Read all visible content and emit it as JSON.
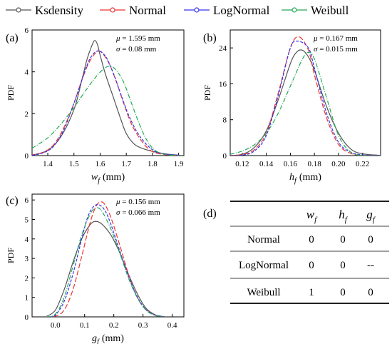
{
  "legend": {
    "items": [
      {
        "label": "Ksdensity",
        "color": "#555555"
      },
      {
        "label": "Normal",
        "color": "#ee3333"
      },
      {
        "label": "LogNormal",
        "color": "#3333ee"
      },
      {
        "label": "Weibull",
        "color": "#22aa55"
      }
    ]
  },
  "chart_data": [
    {
      "type": "line",
      "panel": "(a)",
      "ylabel": "PDF",
      "xlabel_main": "w",
      "xlabel_sub": "f",
      "xlabel_unit": "(mm)",
      "annotations": [
        "μ = 1.595 mm",
        "σ = 0.08 mm"
      ],
      "xlim": [
        1.34,
        1.92
      ],
      "ylim": [
        0,
        6
      ],
      "xticks": [
        1.4,
        1.5,
        1.6,
        1.7,
        1.8,
        1.9
      ],
      "xtick_labels": [
        "1.4",
        "1.5",
        "1.6",
        "1.7",
        "1.8",
        "1.9"
      ],
      "yticks": [
        0,
        2,
        4,
        6
      ],
      "ytick_labels": [
        "0",
        "2",
        "4",
        "6"
      ],
      "series": [
        {
          "name": "Ksdensity",
          "color": "#555555",
          "x": [
            1.34,
            1.4,
            1.45,
            1.5,
            1.53,
            1.55,
            1.57,
            1.58,
            1.59,
            1.6,
            1.62,
            1.65,
            1.68,
            1.7,
            1.73,
            1.76,
            1.8,
            1.85,
            1.9
          ],
          "y": [
            0.02,
            0.25,
            0.9,
            2.2,
            3.6,
            4.6,
            5.3,
            5.5,
            5.3,
            4.8,
            3.9,
            2.8,
            1.7,
            1.05,
            0.55,
            0.35,
            0.2,
            0.08,
            0.02
          ]
        },
        {
          "name": "Normal",
          "color": "#ee3333",
          "x": [
            1.34,
            1.38,
            1.42,
            1.46,
            1.5,
            1.53,
            1.56,
            1.595,
            1.63,
            1.66,
            1.69,
            1.72,
            1.76,
            1.8,
            1.85,
            1.9
          ],
          "y": [
            0.03,
            0.15,
            0.48,
            1.3,
            2.5,
            3.6,
            4.5,
            4.99,
            4.5,
            3.6,
            2.5,
            1.5,
            0.67,
            0.19,
            0.04,
            0.01
          ]
        },
        {
          "name": "LogNormal",
          "color": "#3333ee",
          "x": [
            1.34,
            1.38,
            1.42,
            1.46,
            1.5,
            1.53,
            1.56,
            1.59,
            1.62,
            1.65,
            1.68,
            1.71,
            1.75,
            1.8,
            1.85,
            1.9
          ],
          "y": [
            0.02,
            0.12,
            0.42,
            1.2,
            2.5,
            3.6,
            4.6,
            5.0,
            4.75,
            3.95,
            2.9,
            1.9,
            0.95,
            0.28,
            0.07,
            0.02
          ]
        },
        {
          "name": "Weibull",
          "color": "#22aa55",
          "x": [
            1.34,
            1.4,
            1.45,
            1.5,
            1.55,
            1.59,
            1.62,
            1.64,
            1.66,
            1.69,
            1.72,
            1.75,
            1.78,
            1.81,
            1.85,
            1.9
          ],
          "y": [
            0.35,
            0.85,
            1.5,
            2.3,
            3.2,
            3.85,
            4.2,
            4.25,
            4.1,
            3.5,
            2.5,
            1.5,
            0.7,
            0.25,
            0.05,
            0.01
          ]
        }
      ]
    },
    {
      "type": "line",
      "panel": "(b)",
      "ylabel": "PDF",
      "xlabel_main": "h",
      "xlabel_sub": "f",
      "xlabel_unit": "(mm)",
      "annotations": [
        "μ = 0.167 mm",
        "σ = 0.015 mm"
      ],
      "xlim": [
        0.11,
        0.235
      ],
      "ylim": [
        0,
        28
      ],
      "xticks": [
        0.12,
        0.14,
        0.16,
        0.18,
        0.2,
        0.22
      ],
      "xtick_labels": [
        "0.12",
        "0.14",
        "0.16",
        "0.18",
        "0.20",
        "0.22"
      ],
      "yticks": [
        0,
        8,
        16,
        24
      ],
      "ytick_labels": [
        "0",
        "8",
        "16",
        "24"
      ],
      "series": [
        {
          "name": "Ksdensity",
          "color": "#555555",
          "x": [
            0.11,
            0.12,
            0.13,
            0.14,
            0.15,
            0.16,
            0.165,
            0.17,
            0.175,
            0.18,
            0.19,
            0.2,
            0.21,
            0.22,
            0.235
          ],
          "y": [
            0.0,
            0.3,
            1.8,
            5.5,
            12.5,
            20.5,
            23.0,
            23.5,
            22.0,
            19.0,
            11.0,
            5.0,
            1.5,
            0.4,
            0.05
          ]
        },
        {
          "name": "Normal",
          "color": "#ee3333",
          "x": [
            0.11,
            0.12,
            0.13,
            0.14,
            0.15,
            0.16,
            0.167,
            0.175,
            0.18,
            0.19,
            0.2,
            0.21,
            0.22,
            0.235
          ],
          "y": [
            0.02,
            0.2,
            1.3,
            5.0,
            14.0,
            24.0,
            26.5,
            23.5,
            18.0,
            8.5,
            2.5,
            0.5,
            0.06,
            0.0
          ]
        },
        {
          "name": "LogNormal",
          "color": "#3333ee",
          "x": [
            0.11,
            0.12,
            0.13,
            0.14,
            0.15,
            0.16,
            0.166,
            0.175,
            0.18,
            0.19,
            0.2,
            0.21,
            0.22,
            0.235
          ],
          "y": [
            0.0,
            0.1,
            1.0,
            4.5,
            13.5,
            24.0,
            25.5,
            24.0,
            19.5,
            9.5,
            3.0,
            0.8,
            0.15,
            0.01
          ]
        },
        {
          "name": "Weibull",
          "color": "#22aa55",
          "x": [
            0.11,
            0.12,
            0.13,
            0.14,
            0.15,
            0.16,
            0.17,
            0.175,
            0.18,
            0.19,
            0.2,
            0.21,
            0.22,
            0.235
          ],
          "y": [
            0.3,
            1.0,
            2.4,
            5.0,
            9.5,
            15.5,
            21.5,
            23.0,
            21.5,
            13.0,
            4.5,
            0.8,
            0.05,
            0.0
          ]
        }
      ]
    },
    {
      "type": "line",
      "panel": "(c)",
      "ylabel": "PDF",
      "xlabel_main": "g",
      "xlabel_sub": "f",
      "xlabel_unit": "(mm)",
      "annotations": [
        "μ = 0.156 mm",
        "σ = 0.066 mm"
      ],
      "xlim": [
        -0.08,
        0.44
      ],
      "ylim": [
        0,
        6.3
      ],
      "xticks": [
        0.0,
        0.1,
        0.2,
        0.3,
        0.4
      ],
      "xtick_labels": [
        "0.0",
        "0.1",
        "0.2",
        "0.3",
        "0.4"
      ],
      "yticks": [
        0,
        1,
        2,
        3,
        4,
        5,
        6
      ],
      "ytick_labels": [
        "0",
        "1",
        "2",
        "3",
        "4",
        "5",
        "6"
      ],
      "series": [
        {
          "name": "Ksdensity",
          "color": "#555555",
          "x": [
            -0.03,
            0.0,
            0.03,
            0.06,
            0.09,
            0.12,
            0.14,
            0.16,
            0.19,
            0.22,
            0.25,
            0.28,
            0.31,
            0.34,
            0.36,
            0.38
          ],
          "y": [
            0.03,
            0.35,
            1.4,
            2.8,
            4.0,
            4.75,
            4.9,
            4.75,
            4.2,
            3.3,
            2.2,
            1.2,
            0.45,
            0.12,
            0.04,
            0.0
          ]
        },
        {
          "name": "Normal",
          "color": "#ee3333",
          "x": [
            -0.03,
            0.0,
            0.03,
            0.06,
            0.09,
            0.12,
            0.14,
            0.156,
            0.17,
            0.19,
            0.22,
            0.25,
            0.28,
            0.31,
            0.34,
            0.37
          ],
          "y": [
            0.01,
            0.04,
            0.35,
            1.4,
            3.1,
            4.9,
            5.7,
            5.9,
            5.75,
            5.1,
            3.7,
            2.2,
            1.0,
            0.38,
            0.1,
            0.0
          ]
        },
        {
          "name": "LogNormal",
          "color": "#3333ee",
          "x": [
            -0.02,
            0.0,
            0.03,
            0.06,
            0.09,
            0.11,
            0.13,
            0.15,
            0.17,
            0.19,
            0.22,
            0.25,
            0.28,
            0.31,
            0.34,
            0.37
          ],
          "y": [
            0.0,
            0.1,
            0.8,
            2.2,
            4.0,
            5.1,
            5.65,
            5.75,
            5.45,
            4.75,
            3.4,
            2.1,
            1.05,
            0.38,
            0.1,
            0.0
          ]
        },
        {
          "name": "Weibull",
          "color": "#22aa55",
          "x": [
            -0.03,
            0.0,
            0.03,
            0.06,
            0.09,
            0.12,
            0.14,
            0.16,
            0.19,
            0.22,
            0.25,
            0.28,
            0.31,
            0.34,
            0.37
          ],
          "y": [
            0.0,
            0.15,
            1.0,
            2.6,
            4.2,
            5.3,
            5.6,
            5.4,
            4.5,
            3.3,
            2.0,
            1.0,
            0.35,
            0.08,
            0.0
          ]
        }
      ]
    }
  ],
  "table": {
    "panel": "(d)",
    "headers": [
      {
        "main": "",
        "sub": ""
      },
      {
        "main": "w",
        "sub": "f"
      },
      {
        "main": "h",
        "sub": "f"
      },
      {
        "main": "g",
        "sub": "f"
      }
    ],
    "rows": [
      [
        "Normal",
        "0",
        "0",
        "0"
      ],
      [
        "LogNormal",
        "0",
        "0",
        "--"
      ],
      [
        "Weibull",
        "1",
        "0",
        "0"
      ]
    ]
  }
}
